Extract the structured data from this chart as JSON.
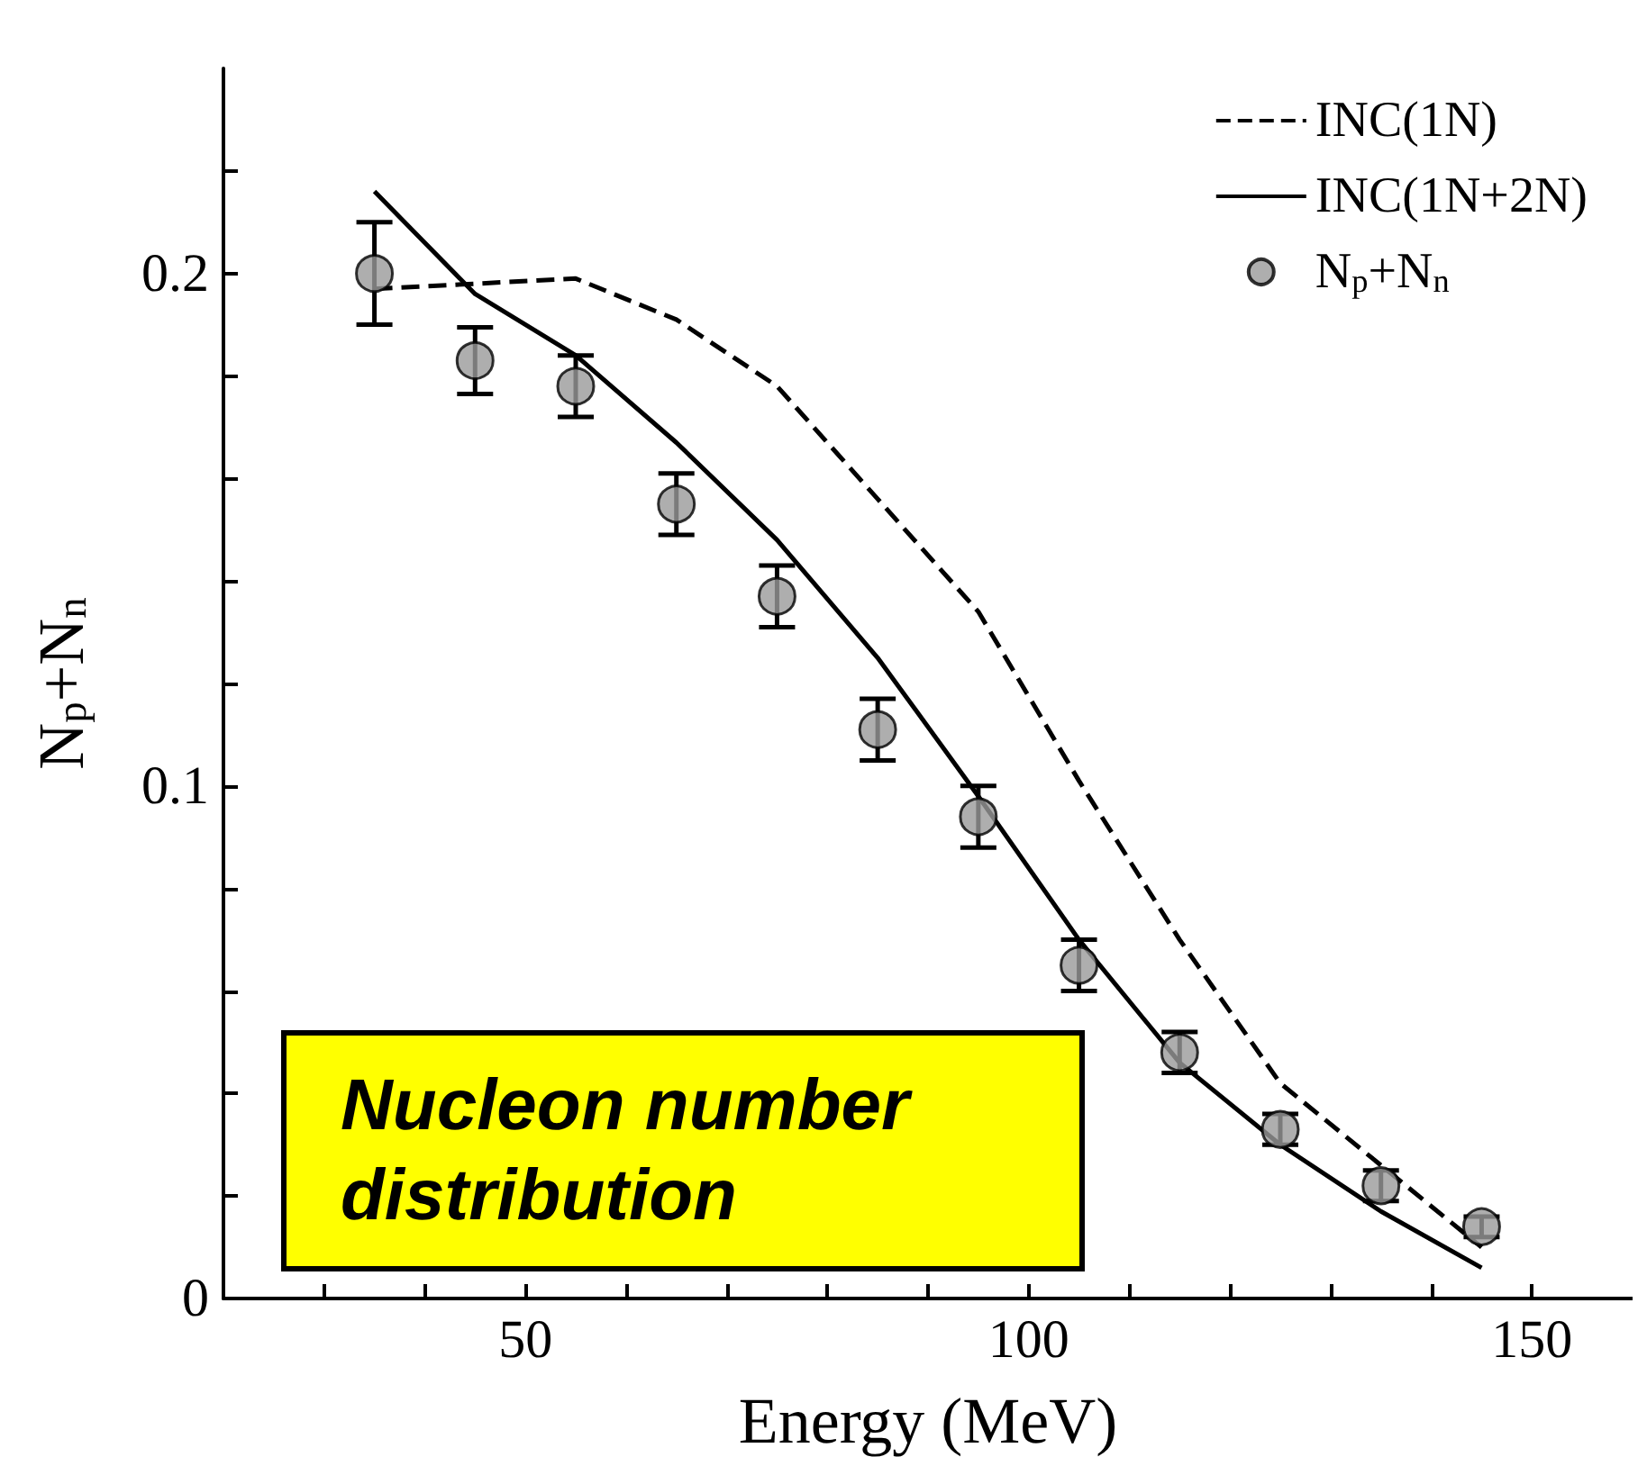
{
  "chart_data": {
    "type": "scatter",
    "xlabel": "Energy (MeV)",
    "ylabel": "N$_{p}$+N$_{n}$",
    "x": [
      35,
      45,
      55,
      65,
      75,
      85,
      95,
      105,
      115,
      125,
      135,
      145
    ],
    "series": [
      {
        "name": "INC(1N)",
        "type": "line",
        "line_style": "dashed",
        "color": "#000000",
        "marker": "none",
        "values": [
          0.197,
          0.198,
          0.199,
          0.191,
          0.178,
          0.156,
          0.134,
          0.101,
          0.07,
          0.042,
          0.026,
          0.01
        ]
      },
      {
        "name": "INC(1N+2N)",
        "type": "line",
        "line_style": "solid",
        "color": "#000000",
        "marker": "none",
        "values": [
          0.216,
          0.196,
          0.184,
          0.167,
          0.148,
          0.125,
          0.098,
          0.07,
          0.046,
          0.03,
          0.017,
          0.006
        ]
      },
      {
        "name": "N$_{p}$+N$_{n}$",
        "marker": "circle",
        "color": "#9a9a9a",
        "values": [
          0.2,
          0.183,
          0.178,
          0.155,
          0.137,
          0.111,
          0.094,
          0.065,
          0.048,
          0.033,
          0.022,
          0.014
        ],
        "errors": [
          0.01,
          0.0065,
          0.006,
          0.006,
          0.006,
          0.006,
          0.006,
          0.005,
          0.004,
          0.003,
          0.003,
          0.002
        ]
      }
    ],
    "xlim": [
      20,
      160
    ],
    "xticks": [
      {
        "value": 30,
        "label": null
      },
      {
        "value": 40,
        "label": null
      },
      50,
      {
        "value": 60,
        "label": null
      },
      {
        "value": 70,
        "label": null
      },
      {
        "value": 80,
        "label": null
      },
      {
        "value": 90,
        "label": null
      },
      100,
      {
        "value": 110,
        "label": null
      },
      {
        "value": 120,
        "label": null
      },
      {
        "value": 130,
        "label": null
      },
      {
        "value": 140,
        "label": null
      },
      150
    ],
    "ylim": [
      0,
      0.24
    ],
    "yticks": [
      0,
      {
        "value": 0.02,
        "label": null
      },
      {
        "value": 0.04,
        "label": null
      },
      {
        "value": 0.06,
        "label": null
      },
      {
        "value": 0.08,
        "label": null
      },
      0.1,
      {
        "value": 0.12,
        "label": null
      },
      {
        "value": 0.14,
        "label": null
      },
      {
        "value": 0.16,
        "label": null
      },
      {
        "value": 0.18,
        "label": null
      },
      0.2,
      {
        "value": 0.22,
        "label": null
      }
    ],
    "legend": "top right",
    "grid": false,
    "annotations": [
      "Nucleon number distribution"
    ]
  }
}
